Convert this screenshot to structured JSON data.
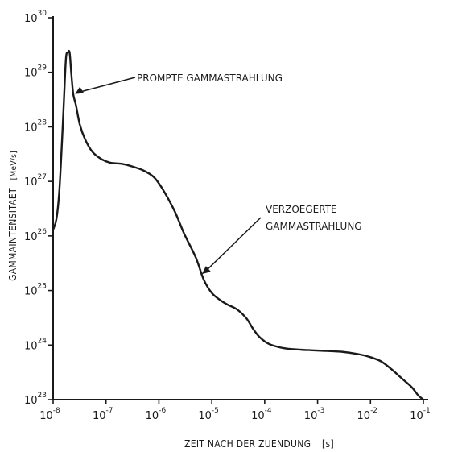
{
  "chart_data": {
    "type": "line",
    "xscale": "log",
    "yscale": "log",
    "xlim": [
      1e-08,
      0.1
    ],
    "ylim": [
      1e+23,
      1e+30
    ],
    "grid": false,
    "xlabel": "ZEIT NACH DER ZUENDUNG",
    "xlabel_unit": "[s]",
    "ylabel": "GAMMAINTENSITAET",
    "ylabel_unit": "[MeV/s]",
    "xticks": [
      {
        "base": "10",
        "exp": "-8"
      },
      {
        "base": "10",
        "exp": "-7"
      },
      {
        "base": "10",
        "exp": "-6"
      },
      {
        "base": "10",
        "exp": "-5"
      },
      {
        "base": "10",
        "exp": "-4"
      },
      {
        "base": "10",
        "exp": "-3"
      },
      {
        "base": "10",
        "exp": "-2"
      },
      {
        "base": "10",
        "exp": "-1"
      }
    ],
    "yticks": [
      {
        "base": "10",
        "exp": "23"
      },
      {
        "base": "10",
        "exp": "24"
      },
      {
        "base": "10",
        "exp": "25"
      },
      {
        "base": "10",
        "exp": "26"
      },
      {
        "base": "10",
        "exp": "27"
      },
      {
        "base": "10",
        "exp": "28"
      },
      {
        "base": "10",
        "exp": "29"
      },
      {
        "base": "10",
        "exp": "30"
      }
    ],
    "series": [
      {
        "x": [
          1e-08,
          1.15e-08,
          1.3e-08,
          1.45e-08,
          1.6e-08,
          1.75e-08,
          1.9e-08,
          2.05e-08,
          2.2e-08,
          2.4e-08,
          2.7e-08,
          3.2e-08,
          4e-08,
          5.5e-08,
          8e-08,
          1.2e-07,
          2e-07,
          3e-07,
          5e-07,
          8e-07,
          1.2e-06,
          2e-06,
          3e-06,
          5e-06,
          7e-06,
          1e-05,
          1.5e-05,
          2e-05,
          3e-05,
          4.5e-05,
          6e-05,
          8e-05,
          0.00012,
          0.0002,
          0.0003,
          0.0005,
          0.0008,
          0.0015,
          0.003,
          0.006,
          0.01,
          0.016,
          0.025,
          0.04,
          0.06,
          0.08,
          0.1
        ],
        "y": [
          1.3e+26,
          2e+26,
          6e+26,
          4e+27,
          3e+28,
          1.8e+29,
          2.3e+29,
          2.3e+29,
          1e+29,
          4e+28,
          2.5e+28,
          1.1e+28,
          6e+27,
          3.5e+27,
          2.6e+27,
          2.2e+27,
          2.1e+27,
          1.9e+27,
          1.6e+27,
          1.2e+27,
          7e+26,
          2.8e+26,
          1.1e+26,
          4e+25,
          1.6e+25,
          9e+24,
          6.5e+24,
          5.5e+24,
          4.5e+24,
          3.1e+24,
          2e+24,
          1.4e+24,
          1.05e+24,
          9e+23,
          8.5e+23,
          8.2e+23,
          8e+23,
          7.8e+23,
          7.5e+23,
          6.8e+23,
          6e+23,
          5e+23,
          3.6e+23,
          2.4e+23,
          1.7e+23,
          1.2e+23,
          1e+23
        ]
      }
    ],
    "annotations": [
      {
        "text": "PROMPTE GAMMASTRAHLUNG",
        "target": [
          2.6e-08,
          4e+28
        ]
      },
      {
        "text": "VERZOEGERTE",
        "text2": "GAMMASTRAHLUNG",
        "target": [
          6.5e-06,
          2e+25
        ]
      }
    ]
  }
}
